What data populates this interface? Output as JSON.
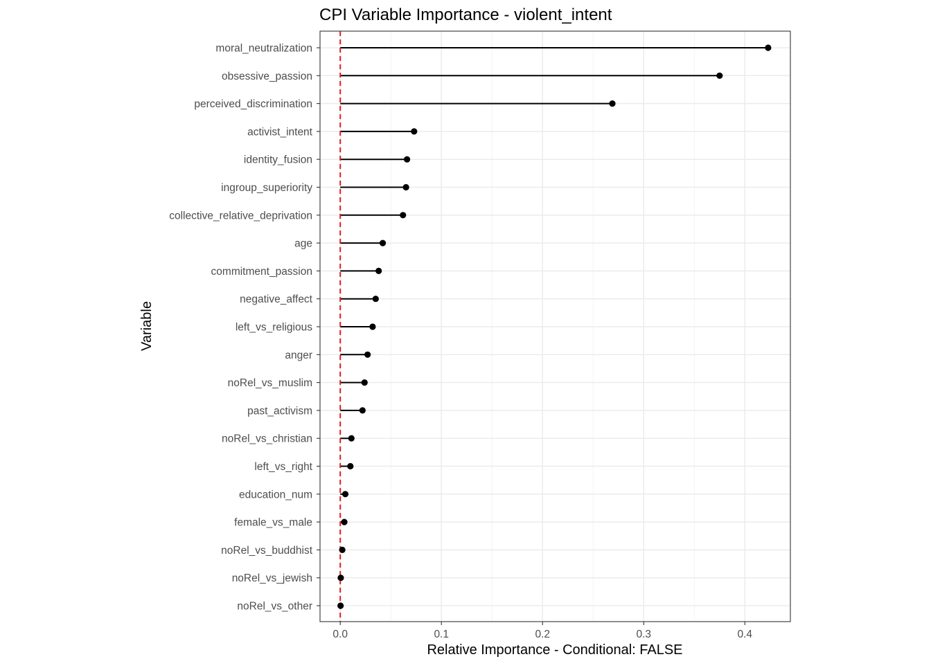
{
  "chart_data": {
    "type": "lollipop",
    "title": "CPI Variable Importance - violent_intent",
    "xlabel": "Relative Importance - Conditional: FALSE",
    "ylabel": "Variable",
    "xlim": [
      -0.02,
      0.445
    ],
    "x_ticks": [
      0.0,
      0.1,
      0.2,
      0.3,
      0.4
    ],
    "x_tick_labels": [
      "0.0",
      "0.1",
      "0.2",
      "0.3",
      "0.4"
    ],
    "grid": true,
    "reference_line": {
      "x": 0.0,
      "color": "#e41a1c",
      "style": "dashed"
    },
    "categories": [
      "moral_neutralization",
      "obsessive_passion",
      "perceived_discrimination",
      "activist_intent",
      "identity_fusion",
      "ingroup_superiority",
      "collective_relative_deprivation",
      "age",
      "commitment_passion",
      "negative_affect",
      "left_vs_religious",
      "anger",
      "noRel_vs_muslim",
      "past_activism",
      "noRel_vs_christian",
      "left_vs_right",
      "education_num",
      "female_vs_male",
      "noRel_vs_buddhist",
      "noRel_vs_jewish",
      "noRel_vs_other"
    ],
    "values": [
      0.423,
      0.375,
      0.269,
      0.073,
      0.066,
      0.065,
      0.062,
      0.042,
      0.038,
      0.035,
      0.032,
      0.027,
      0.024,
      0.022,
      0.011,
      0.01,
      0.005,
      0.004,
      0.002,
      0.0005,
      0.0003
    ],
    "colors": {
      "point": "#000000",
      "stem": "#000000",
      "ref_line": "#e41a1c"
    }
  }
}
